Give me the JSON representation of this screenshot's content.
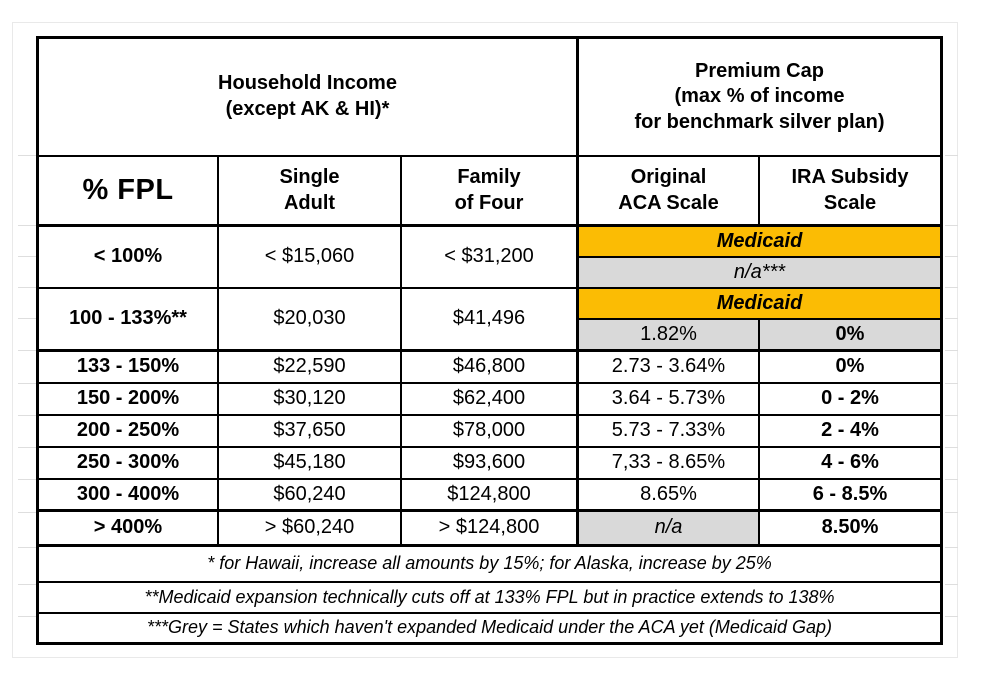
{
  "colors": {
    "medicaid_orange": "#FBBC04",
    "medicaid_gap_grey": "#D9D9D9",
    "table_border": "#000000"
  },
  "header": {
    "household_income_group": "Household Income\n(except AK & HI)*",
    "premium_cap_group": "Premium Cap\n(max % of income\nfor benchmark silver plan)",
    "columns_display": [
      "% FPL",
      "Single\nAdult",
      "Family\nof Four",
      "Original\nACA Scale",
      "IRA Subsidy\nScale"
    ]
  },
  "rows": {
    "lt_100": {
      "fpl": "< 100%",
      "single": "< $15,060",
      "family": "< $31,200",
      "premium_span": "Medicaid",
      "premium_note": "n/a***"
    },
    "r_100_133": {
      "fpl": "100 - 133%**",
      "single": "$20,030",
      "family": "$41,496",
      "premium_span": "Medicaid",
      "aca": "1.82%",
      "ira": "0%"
    },
    "standard": [
      {
        "fpl": "133 - 150%",
        "single": "$22,590",
        "family": "$46,800",
        "aca": "2.73 - 3.64%",
        "ira": "0%"
      },
      {
        "fpl": "150 - 200%",
        "single": "$30,120",
        "family": "$62,400",
        "aca": "3.64 - 5.73%",
        "ira": "0 - 2%"
      },
      {
        "fpl": "200 - 250%",
        "single": "$37,650",
        "family": "$78,000",
        "aca": "5.73 - 7.33%",
        "ira": "2 - 4%"
      },
      {
        "fpl": "250 - 300%",
        "single": "$45,180",
        "family": "$93,600",
        "aca": "7,33 - 8.65%",
        "ira": "4 - 6%"
      },
      {
        "fpl": "300 - 400%",
        "single": "$60,240",
        "family": "$124,800",
        "aca": "8.65%",
        "ira": "6 - 8.5%"
      }
    ],
    "gt_400": {
      "fpl": "> 400%",
      "single": "> $60,240",
      "family": "> $124,800",
      "aca": "n/a",
      "ira": "8.50%"
    }
  },
  "footnotes": [
    "* for Hawaii, increase all amounts by 15%; for Alaska, increase by 25%",
    "**Medicaid expansion technically cuts off at 133% FPL but in practice extends to 138%",
    "***Grey = States which haven't expanded Medicaid under the ACA yet (Medicaid Gap)"
  ],
  "chart_data": {
    "type": "table",
    "column_groups": [
      {
        "label": "Household Income (except AK & HI)*",
        "columns": [
          "% FPL",
          "Single Adult",
          "Family of Four"
        ]
      },
      {
        "label": "Premium Cap (max % of income for benchmark silver plan)",
        "columns": [
          "Original ACA Scale",
          "IRA Subsidy Scale"
        ]
      }
    ],
    "columns": [
      "% FPL",
      "Single Adult",
      "Family of Four",
      "Original ACA Scale",
      "IRA Subsidy Scale"
    ],
    "rows": [
      {
        "fpl": "< 100%",
        "single_adult": "< $15,060",
        "family_of_four": "< $31,200",
        "original_aca_scale": "Medicaid",
        "ira_subsidy_scale": "Medicaid",
        "sub_row": "n/a***",
        "highlight": "orange over grey"
      },
      {
        "fpl": "100 - 133%**",
        "single_adult": "$20,030",
        "family_of_four": "$41,496",
        "original_aca_scale": "Medicaid / 1.82%",
        "ira_subsidy_scale": "Medicaid / 0%",
        "highlight": "orange over grey"
      },
      {
        "fpl": "133 - 150%",
        "single_adult": "$22,590",
        "family_of_four": "$46,800",
        "original_aca_scale": "2.73 - 3.64%",
        "ira_subsidy_scale": "0%",
        "highlight": "none"
      },
      {
        "fpl": "150 - 200%",
        "single_adult": "$30,120",
        "family_of_four": "$62,400",
        "original_aca_scale": "3.64 - 5.73%",
        "ira_subsidy_scale": "0 - 2%",
        "highlight": "none"
      },
      {
        "fpl": "200 - 250%",
        "single_adult": "$37,650",
        "family_of_four": "$78,000",
        "original_aca_scale": "5.73 - 7.33%",
        "ira_subsidy_scale": "2 - 4%",
        "highlight": "none"
      },
      {
        "fpl": "250 - 300%",
        "single_adult": "$45,180",
        "family_of_four": "$93,600",
        "original_aca_scale": "7,33 - 8.65%",
        "ira_subsidy_scale": "4 - 6%",
        "highlight": "none"
      },
      {
        "fpl": "300 - 400%",
        "single_adult": "$60,240",
        "family_of_four": "$124,800",
        "original_aca_scale": "8.65%",
        "ira_subsidy_scale": "6 - 8.5%",
        "highlight": "none"
      },
      {
        "fpl": "> 400%",
        "single_adult": "> $60,240",
        "family_of_four": "> $124,800",
        "original_aca_scale": "n/a",
        "ira_subsidy_scale": "8.50%",
        "highlight": "grey n/a cell"
      }
    ],
    "footnotes": [
      "* for Hawaii, increase all amounts by 15%; for Alaska, increase by 25%",
      "**Medicaid expansion technically cuts off at 133% FPL but in practice extends to 138%",
      "***Grey = States which haven't expanded Medicaid under the ACA yet (Medicaid Gap)"
    ],
    "legend_position": "footnotes",
    "grid": true
  }
}
